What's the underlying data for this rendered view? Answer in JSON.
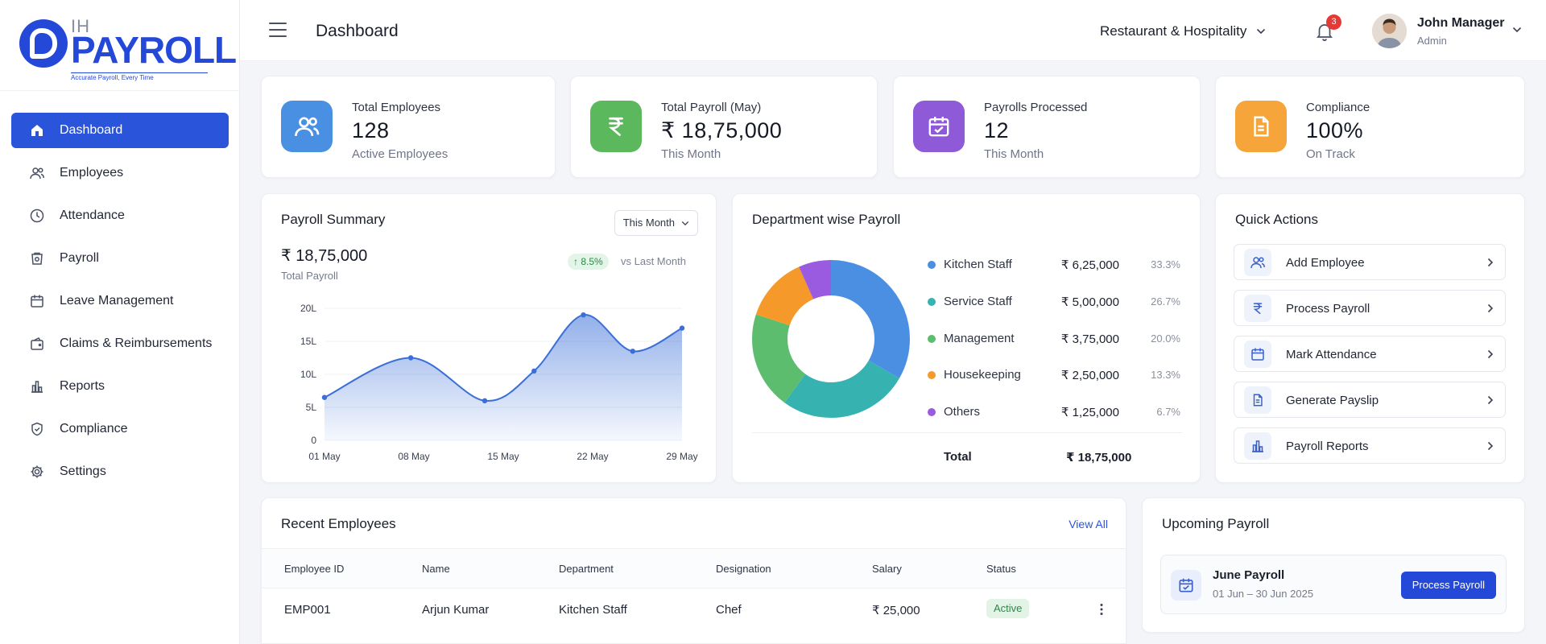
{
  "brand": {
    "ih": "IH",
    "name": "PAYROLL",
    "tagline": "Accurate Payroll, Every Time"
  },
  "sidebar": {
    "items": [
      {
        "label": "Dashboard",
        "icon": "home-icon",
        "active": true
      },
      {
        "label": "Employees",
        "icon": "users-icon"
      },
      {
        "label": "Attendance",
        "icon": "clock-icon"
      },
      {
        "label": "Payroll",
        "icon": "payroll-icon"
      },
      {
        "label": "Leave Management",
        "icon": "calendar-icon"
      },
      {
        "label": "Claims & Reimbursements",
        "icon": "wallet-icon"
      },
      {
        "label": "Reports",
        "icon": "bar-chart-icon"
      },
      {
        "label": "Compliance",
        "icon": "shield-icon"
      },
      {
        "label": "Settings",
        "icon": "gear-icon"
      }
    ]
  },
  "header": {
    "title": "Dashboard",
    "organization": "Restaurant & Hospitality",
    "notifications": "3",
    "user": {
      "name": "John Manager",
      "role": "Admin"
    }
  },
  "stats": [
    {
      "label": "Total Employees",
      "value": "128",
      "sub": "Active Employees",
      "color": "#4a90e2",
      "icon": "users-icon"
    },
    {
      "label": "Total Payroll (May)",
      "value": "₹ 18,75,000",
      "sub": "This Month",
      "color": "#5cb85c",
      "icon": "rupee-icon"
    },
    {
      "label": "Payrolls Processed",
      "value": "12",
      "sub": "This Month",
      "color": "#8e5ad8",
      "icon": "calendar-check-icon"
    },
    {
      "label": "Compliance",
      "value": "100%",
      "sub": "On Track",
      "color": "#f5a53a",
      "icon": "document-icon"
    }
  ],
  "payroll_summary": {
    "title": "Payroll Summary",
    "period": "This Month",
    "total": "₹ 18,75,000",
    "total_label": "Total Payroll",
    "change": "↑ 8.5%",
    "change_label": "vs Last Month"
  },
  "chart_data": {
    "type": "area",
    "x": [
      "01 May",
      "08 May",
      "15 May",
      "22 May",
      "29 May"
    ],
    "x_ticks": [
      "01 May",
      "08 May",
      "15 May",
      "22 May",
      "29 May"
    ],
    "points": [
      {
        "x": 0,
        "y": 6.5
      },
      {
        "x": 7,
        "y": 12.5
      },
      {
        "x": 13,
        "y": 6
      },
      {
        "x": 17,
        "y": 10.5
      },
      {
        "x": 21,
        "y": 19
      },
      {
        "x": 25,
        "y": 13.5
      },
      {
        "x": 29,
        "y": 17
      }
    ],
    "y_ticks": [
      "0",
      "5L",
      "10L",
      "15L",
      "20L"
    ],
    "ylim": [
      0,
      20
    ],
    "xlim": [
      0,
      29
    ],
    "color": "#3a6fd8"
  },
  "department": {
    "title": "Department wise Payroll",
    "items": [
      {
        "name": "Kitchen Staff",
        "amount": "₹ 6,25,000",
        "pct": "33.3%",
        "value": 33.3,
        "color": "#4a8fe2"
      },
      {
        "name": "Service Staff",
        "amount": "₹ 5,00,000",
        "pct": "26.7%",
        "value": 26.7,
        "color": "#36b3b0"
      },
      {
        "name": "Management",
        "amount": "₹ 3,75,000",
        "pct": "20.0%",
        "value": 20.0,
        "color": "#5cbd6f"
      },
      {
        "name": "Housekeeping",
        "amount": "₹ 2,50,000",
        "pct": "13.3%",
        "value": 13.3,
        "color": "#f59a2a"
      },
      {
        "name": "Others",
        "amount": "₹ 1,25,000",
        "pct": "6.7%",
        "value": 6.7,
        "color": "#9a5be0"
      }
    ],
    "total_label": "Total",
    "total_value": "₹ 18,75,000"
  },
  "quick_actions": {
    "title": "Quick Actions",
    "items": [
      {
        "label": "Add Employee",
        "icon": "add-user-icon"
      },
      {
        "label": "Process Payroll",
        "icon": "rupee-icon"
      },
      {
        "label": "Mark Attendance",
        "icon": "calendar-icon"
      },
      {
        "label": "Generate Payslip",
        "icon": "document-icon"
      },
      {
        "label": "Payroll Reports",
        "icon": "bar-chart-icon"
      }
    ]
  },
  "recent_employees": {
    "title": "Recent Employees",
    "view_all": "View All",
    "columns": [
      "Employee ID",
      "Name",
      "Department",
      "Designation",
      "Salary",
      "Status"
    ],
    "rows": [
      {
        "id": "EMP001",
        "name": "Arjun Kumar",
        "department": "Kitchen Staff",
        "designation": "Chef",
        "salary": "₹ 25,000",
        "status": "Active"
      }
    ]
  },
  "upcoming_payroll": {
    "title": "Upcoming Payroll",
    "name": "June Payroll",
    "range": "01 Jun – 30 Jun 2025",
    "button": "Process Payroll"
  }
}
